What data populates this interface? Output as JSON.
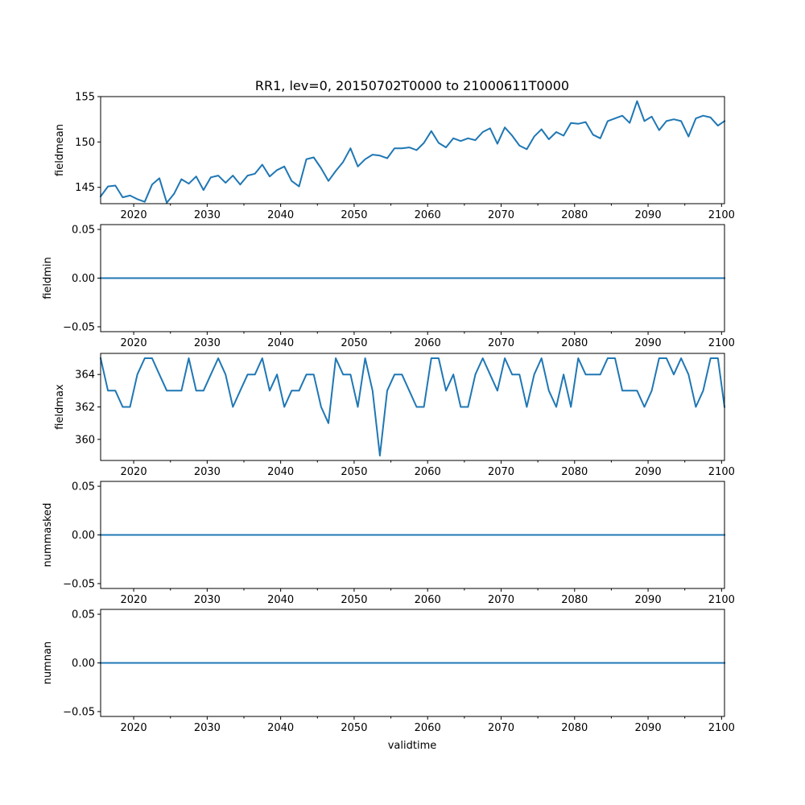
{
  "chart_data": {
    "title": "RR1, lev=0, 20150702T0000 to 21000611T0000",
    "xlabel": "validtime",
    "xlim": [
      2015.5,
      2100.4
    ],
    "x_major_ticks": [
      2020,
      2030,
      2040,
      2050,
      2060,
      2070,
      2080,
      2090,
      2100
    ],
    "x_tick_labels": [
      "2020",
      "2030",
      "2040",
      "2050",
      "2060",
      "2070",
      "2080",
      "2090",
      "2100"
    ],
    "x_minor_ticks": [
      2025,
      2035,
      2045,
      2055,
      2065,
      2075,
      2085,
      2095
    ],
    "x": [
      2015.5,
      2016.5,
      2017.5,
      2018.5,
      2019.5,
      2020.5,
      2021.5,
      2022.5,
      2023.5,
      2024.5,
      2025.5,
      2026.5,
      2027.5,
      2028.5,
      2029.5,
      2030.5,
      2031.5,
      2032.5,
      2033.5,
      2034.5,
      2035.5,
      2036.5,
      2037.5,
      2038.5,
      2039.5,
      2040.5,
      2041.5,
      2042.5,
      2043.5,
      2044.5,
      2045.5,
      2046.5,
      2047.5,
      2048.5,
      2049.5,
      2050.5,
      2051.5,
      2052.5,
      2053.5,
      2054.5,
      2055.5,
      2056.5,
      2057.5,
      2058.5,
      2059.5,
      2060.5,
      2061.5,
      2062.5,
      2063.5,
      2064.5,
      2065.5,
      2066.5,
      2067.5,
      2068.5,
      2069.5,
      2070.5,
      2071.5,
      2072.5,
      2073.5,
      2074.5,
      2075.5,
      2076.5,
      2077.5,
      2078.5,
      2079.5,
      2080.5,
      2081.5,
      2082.5,
      2083.5,
      2084.5,
      2085.5,
      2086.5,
      2087.5,
      2088.5,
      2089.5,
      2090.5,
      2091.5,
      2092.5,
      2093.5,
      2094.5,
      2095.5,
      2096.5,
      2097.5,
      2098.5,
      2099.5,
      2100.4
    ],
    "panels": [
      {
        "type": "line",
        "ylabel": "fieldmean",
        "ylim": [
          143.2,
          155.0
        ],
        "yticks": [
          145,
          150,
          155
        ],
        "ytick_labels": [
          "145",
          "150",
          "155"
        ],
        "values": [
          144.0,
          145.1,
          145.2,
          143.9,
          144.1,
          143.7,
          143.4,
          145.3,
          146.0,
          143.3,
          144.3,
          145.9,
          145.4,
          146.2,
          144.7,
          146.1,
          146.3,
          145.5,
          146.3,
          145.3,
          146.3,
          146.5,
          147.5,
          146.2,
          146.9,
          147.3,
          145.7,
          145.1,
          148.1,
          148.3,
          147.1,
          145.7,
          146.8,
          147.8,
          149.3,
          147.3,
          148.1,
          148.6,
          148.5,
          148.2,
          149.3,
          149.3,
          149.4,
          149.1,
          149.9,
          151.2,
          149.9,
          149.4,
          150.4,
          150.1,
          150.4,
          150.2,
          151.1,
          151.5,
          149.8,
          151.6,
          150.7,
          149.6,
          149.2,
          150.6,
          151.4,
          150.3,
          151.1,
          150.7,
          152.1,
          152.0,
          152.2,
          150.8,
          150.4,
          152.3,
          152.6,
          152.9,
          152.1,
          154.5,
          152.3,
          152.8,
          151.3,
          152.3,
          152.5,
          152.3,
          150.6,
          152.6,
          152.9,
          152.7,
          151.8,
          152.3
        ]
      },
      {
        "type": "line",
        "ylabel": "fieldmin",
        "ylim": [
          -0.055,
          0.055
        ],
        "yticks": [
          -0.05,
          0.0,
          0.05
        ],
        "ytick_labels": [
          "−0.05",
          "0.00",
          "0.05"
        ],
        "constant": 0.0
      },
      {
        "type": "line",
        "ylabel": "fieldmax",
        "ylim": [
          358.7,
          365.3
        ],
        "yticks": [
          360,
          362,
          364
        ],
        "ytick_labels": [
          "360",
          "362",
          "364"
        ],
        "values": [
          365,
          363,
          363,
          362,
          362,
          364,
          365,
          365,
          364,
          363,
          363,
          363,
          365,
          363,
          363,
          364,
          365,
          364,
          362,
          363,
          364,
          364,
          365,
          363,
          364,
          362,
          363,
          363,
          364,
          364,
          362,
          361,
          365,
          364,
          364,
          362,
          365,
          363,
          359,
          363,
          364,
          364,
          363,
          362,
          362,
          365,
          365,
          363,
          364,
          362,
          362,
          364,
          365,
          364,
          363,
          365,
          364,
          364,
          362,
          364,
          365,
          363,
          362,
          364,
          362,
          365,
          364,
          364,
          364,
          365,
          365,
          363,
          363,
          363,
          362,
          363,
          365,
          365,
          364,
          365,
          364,
          362,
          363,
          365,
          365,
          362
        ]
      },
      {
        "type": "line",
        "ylabel": "nummasked",
        "ylim": [
          -0.055,
          0.055
        ],
        "yticks": [
          -0.05,
          0.0,
          0.05
        ],
        "ytick_labels": [
          "−0.05",
          "0.00",
          "0.05"
        ],
        "constant": 0.0
      },
      {
        "type": "line",
        "ylabel": "numnan",
        "ylim": [
          -0.055,
          0.055
        ],
        "yticks": [
          -0.05,
          0.0,
          0.05
        ],
        "ytick_labels": [
          "−0.05",
          "0.00",
          "0.05"
        ],
        "constant": 0.0
      }
    ],
    "line_color": "#1f77b4"
  }
}
